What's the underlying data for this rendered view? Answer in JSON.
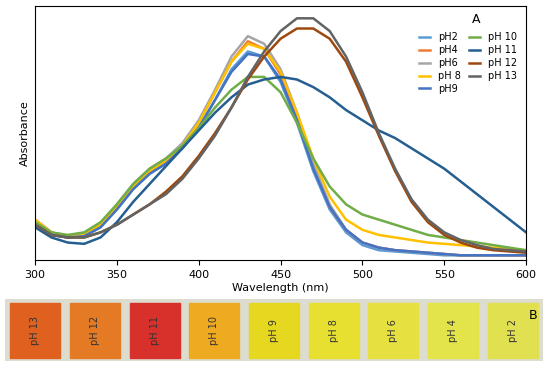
{
  "chart_data": {
    "type": "line",
    "x_label": "Wavelength (nm)",
    "y_label": "Absorbance",
    "annotation": "A",
    "x": [
      300,
      310,
      320,
      330,
      340,
      350,
      360,
      370,
      380,
      390,
      400,
      410,
      420,
      430,
      440,
      450,
      460,
      470,
      480,
      490,
      500,
      510,
      520,
      530,
      540,
      550,
      560,
      570,
      580,
      590,
      600
    ],
    "xlim": [
      300,
      600
    ],
    "xticks": [
      300,
      350,
      400,
      450,
      500,
      550,
      600
    ],
    "ylim": [
      0,
      1
    ],
    "yticks": [],
    "tick_labels": "x",
    "grid": false,
    "legend": "upper right",
    "series": [
      {
        "name": "pH2",
        "color": "#5b9bd5",
        "values": [
          0.15,
          0.1,
          0.09,
          0.095,
          0.13,
          0.2,
          0.28,
          0.34,
          0.38,
          0.44,
          0.52,
          0.63,
          0.75,
          0.82,
          0.8,
          0.7,
          0.54,
          0.35,
          0.2,
          0.11,
          0.06,
          0.04,
          0.035,
          0.03,
          0.025,
          0.02,
          0.02,
          0.02,
          0.02,
          0.02,
          0.02
        ]
      },
      {
        "name": "pH4",
        "color": "#ed7d31",
        "values": [
          0.16,
          0.11,
          0.09,
          0.1,
          0.14,
          0.21,
          0.29,
          0.35,
          0.39,
          0.45,
          0.54,
          0.66,
          0.78,
          0.86,
          0.83,
          0.73,
          0.56,
          0.37,
          0.21,
          0.12,
          0.07,
          0.05,
          0.04,
          0.035,
          0.03,
          0.025,
          0.02,
          0.02,
          0.02,
          0.02,
          0.02
        ]
      },
      {
        "name": "pH6",
        "color": "#a5a5a5",
        "values": [
          0.16,
          0.11,
          0.095,
          0.1,
          0.14,
          0.22,
          0.3,
          0.36,
          0.4,
          0.46,
          0.55,
          0.67,
          0.8,
          0.88,
          0.85,
          0.75,
          0.58,
          0.38,
          0.22,
          0.12,
          0.07,
          0.05,
          0.04,
          0.035,
          0.03,
          0.025,
          0.02,
          0.02,
          0.02,
          0.02,
          0.02
        ]
      },
      {
        "name": "pH 8",
        "color": "#ffc000",
        "values": [
          0.16,
          0.11,
          0.09,
          0.1,
          0.14,
          0.21,
          0.29,
          0.35,
          0.39,
          0.45,
          0.54,
          0.66,
          0.78,
          0.85,
          0.83,
          0.74,
          0.58,
          0.4,
          0.25,
          0.16,
          0.12,
          0.1,
          0.09,
          0.08,
          0.07,
          0.065,
          0.06,
          0.055,
          0.05,
          0.045,
          0.04
        ]
      },
      {
        "name": "pH9",
        "color": "#4472c4",
        "values": [
          0.15,
          0.1,
          0.09,
          0.095,
          0.13,
          0.2,
          0.28,
          0.34,
          0.38,
          0.44,
          0.52,
          0.63,
          0.74,
          0.81,
          0.8,
          0.71,
          0.55,
          0.36,
          0.21,
          0.12,
          0.07,
          0.05,
          0.04,
          0.035,
          0.03,
          0.025,
          0.02,
          0.02,
          0.02,
          0.02,
          0.02
        ]
      },
      {
        "name": "pH 10",
        "color": "#70ad47",
        "values": [
          0.15,
          0.11,
          0.1,
          0.11,
          0.15,
          0.22,
          0.3,
          0.36,
          0.4,
          0.45,
          0.52,
          0.6,
          0.67,
          0.72,
          0.72,
          0.66,
          0.54,
          0.4,
          0.29,
          0.22,
          0.18,
          0.16,
          0.14,
          0.12,
          0.1,
          0.09,
          0.08,
          0.07,
          0.06,
          0.05,
          0.04
        ]
      },
      {
        "name": "pH 11",
        "color": "#255e91",
        "values": [
          0.13,
          0.09,
          0.07,
          0.065,
          0.09,
          0.15,
          0.23,
          0.3,
          0.37,
          0.44,
          0.51,
          0.58,
          0.64,
          0.69,
          0.71,
          0.72,
          0.71,
          0.68,
          0.64,
          0.59,
          0.55,
          0.51,
          0.48,
          0.44,
          0.4,
          0.36,
          0.31,
          0.26,
          0.21,
          0.16,
          0.11
        ]
      },
      {
        "name": "pH 12",
        "color": "#9e480e",
        "values": [
          0.14,
          0.1,
          0.09,
          0.09,
          0.11,
          0.14,
          0.18,
          0.22,
          0.27,
          0.33,
          0.41,
          0.5,
          0.6,
          0.71,
          0.8,
          0.87,
          0.91,
          0.91,
          0.87,
          0.78,
          0.64,
          0.49,
          0.35,
          0.23,
          0.15,
          0.1,
          0.07,
          0.05,
          0.04,
          0.035,
          0.03
        ]
      },
      {
        "name": "pH 13",
        "color": "#636363",
        "values": [
          0.14,
          0.1,
          0.09,
          0.09,
          0.11,
          0.14,
          0.18,
          0.22,
          0.26,
          0.32,
          0.4,
          0.49,
          0.6,
          0.72,
          0.82,
          0.9,
          0.95,
          0.95,
          0.9,
          0.8,
          0.66,
          0.5,
          0.36,
          0.24,
          0.16,
          0.11,
          0.08,
          0.06,
          0.045,
          0.04,
          0.035
        ]
      }
    ]
  },
  "panel_b": {
    "label": "B",
    "vials": [
      "pH 13",
      "pH 12",
      "pH 11",
      "pH 10",
      "pH 9",
      "pH 8",
      "pH 6",
      "pH 4",
      "pH 2"
    ],
    "colors": [
      "#e0601f",
      "#e57a25",
      "#d8302a",
      "#eeaa20",
      "#e6d820",
      "#e8e030",
      "#e6e040",
      "#e3e34a",
      "#e0e050"
    ]
  }
}
